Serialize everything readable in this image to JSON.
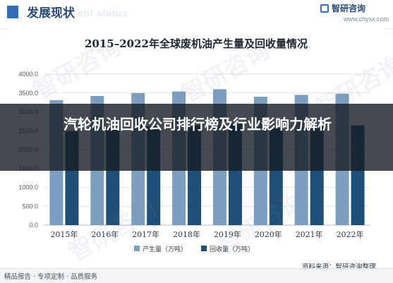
{
  "header": {
    "title": "发展现状",
    "subtitle": "ent status",
    "logo_name": "智研咨询",
    "logo_site": "www.chyxx.com"
  },
  "banner": {
    "text": "汽轮机油回收公司排行榜及行业影响力解析"
  },
  "footer": {
    "left_text": "精品报告 · 专项定制 · 品质服务",
    "source_text": "资料来源：智研咨询整理",
    "watermark_text": "智研咨询"
  },
  "chart_data": {
    "type": "bar",
    "title": "2015–2022年全球废机油产生量及回收量情况",
    "categories": [
      "2015年",
      "2016年",
      "2017年",
      "2018年",
      "2019年",
      "2020年",
      "2021年",
      "2022年"
    ],
    "series": [
      {
        "name": "产生量（万吨）",
        "color": "#7d9fbf",
        "values": [
          3310,
          3420,
          3500,
          3540,
          3600,
          3400,
          3450,
          3480
        ]
      },
      {
        "name": "回收量（万吨）",
        "color": "#1f4e79",
        "values": [
          2490,
          2560,
          2620,
          2640,
          2690,
          2560,
          2610,
          2640
        ]
      }
    ],
    "ylim": [
      0,
      4000
    ],
    "yticks": [
      "0.0",
      "500.0",
      "1000.0",
      "1500.0",
      "2000.0",
      "2500.0",
      "3000.0",
      "3500.0",
      "4000.0"
    ],
    "grid": true,
    "legend_position": "bottom"
  }
}
